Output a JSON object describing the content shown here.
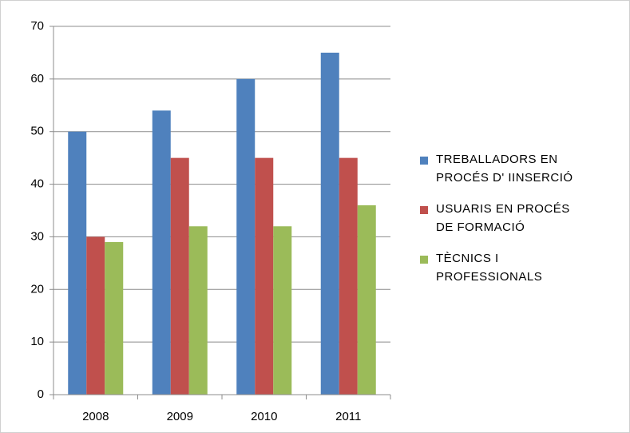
{
  "chart_data": {
    "type": "bar",
    "categories": [
      "2008",
      "2009",
      "2010",
      "2011"
    ],
    "series": [
      {
        "name": "TREBALLADORS EN PROCÉS D' IINSERCIÓ",
        "color": "#4f81bd",
        "values": [
          50,
          54,
          60,
          65
        ]
      },
      {
        "name": "USUARIS EN PROCÉS DE FORMACIÓ",
        "color": "#c0504d",
        "values": [
          30,
          45,
          45,
          45
        ]
      },
      {
        "name": "TÈCNICS I PROFESSIONALS",
        "color": "#9bbb59",
        "values": [
          29,
          32,
          32,
          36
        ]
      }
    ],
    "ylim": [
      0,
      70
    ],
    "yticks": [
      0,
      10,
      20,
      30,
      40,
      50,
      60,
      70
    ],
    "grid": true,
    "legend": "right"
  }
}
